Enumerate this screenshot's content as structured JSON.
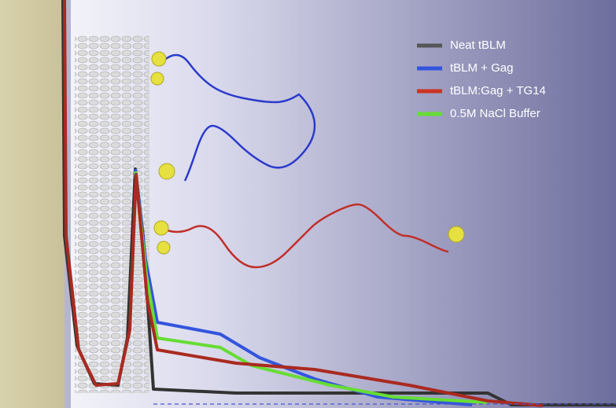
{
  "legend": {
    "items": [
      {
        "label": "Neat tBLM",
        "color": "#555555"
      },
      {
        "label": "tBLM + Gag",
        "color": "#3355dd"
      },
      {
        "label": "tBLM:Gag + TG14",
        "color": "#cc3322"
      },
      {
        "label": "0.5M NaCl Buffer",
        "color": "#66dd33"
      }
    ]
  }
}
